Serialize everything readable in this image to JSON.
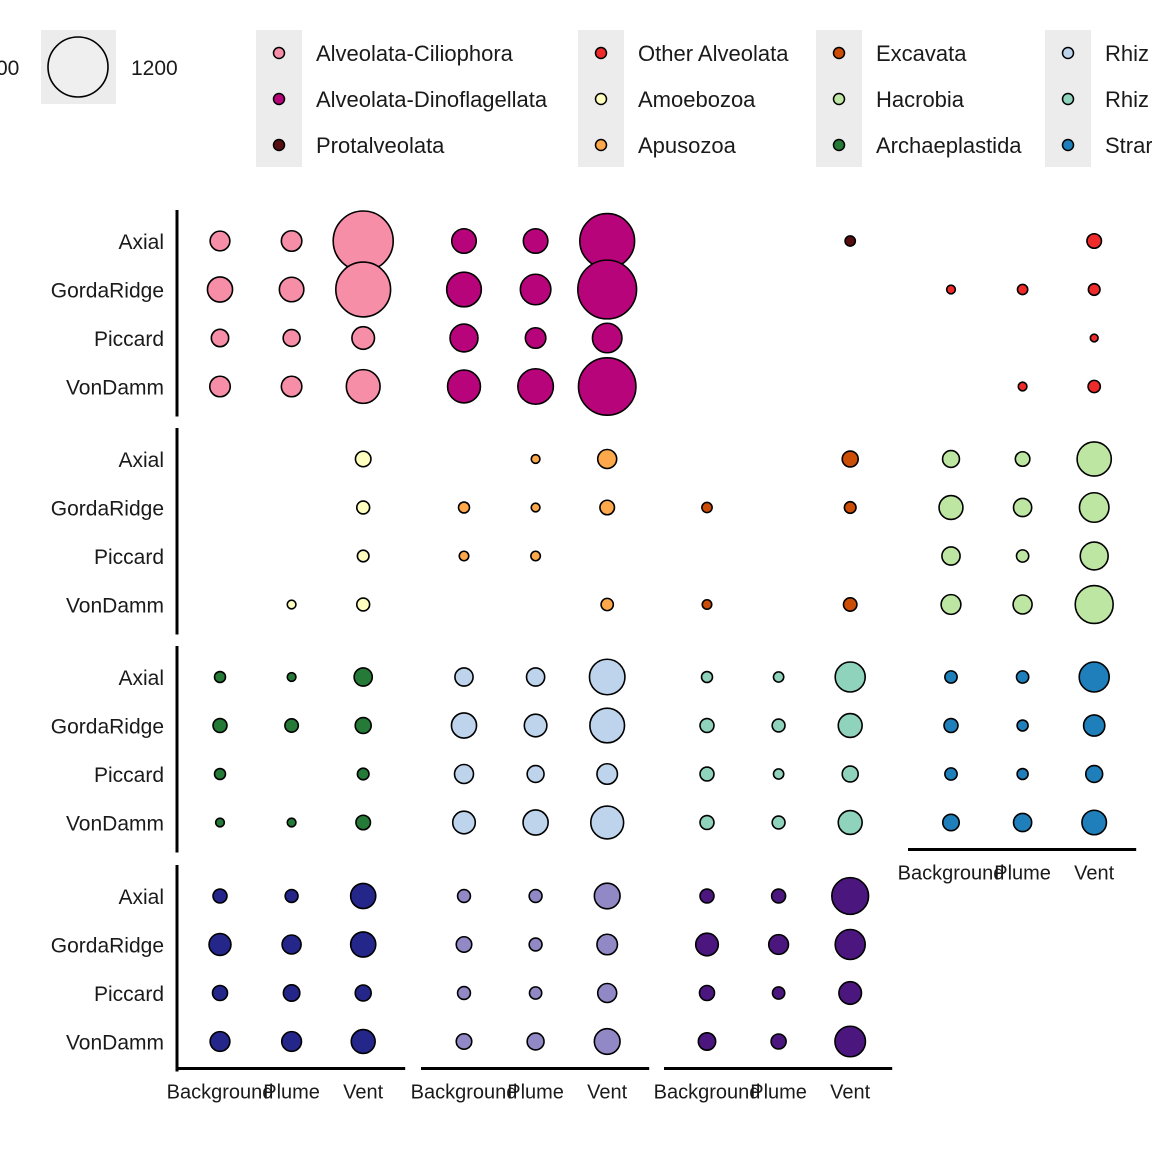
{
  "chart_data": {
    "type": "scatter",
    "x_categories": [
      "Background",
      "Plume",
      "Vent"
    ],
    "y_categories": [
      "Axial",
      "GordaRidge",
      "Piccard",
      "VonDamm"
    ],
    "size_legend": {
      "entries": [
        {
          "label": "1200",
          "value": 1200
        }
      ],
      "partial_label": "00"
    },
    "colors": {
      "Alveolata-Ciliophora": "#f78ea8",
      "Alveolata-Dinoflagellata": "#b8047a",
      "Protalveolata": "#570e10",
      "Other Alveolata": "#ef2a2a",
      "Amoebozoa": "#ffffbf",
      "Apusozoa": "#fda84b",
      "Excavata": "#cc4d06",
      "Hacrobia": "#bee6a3",
      "Archaeplastida": "#247a36",
      "Rhizaria-Cercozoa": "#bdd4ec",
      "Rhizaria-Radiolaria": "#8fd3bc",
      "Stramenopiles": "#1f7fba",
      "Opisthokonta-Fungi": "#25268a",
      "Opisthokonta-Metazoa": "#9188c6",
      "Opisthokonta-Other": "#4b177f"
    },
    "legend": {
      "columns": [
        [
          "Alveolata-Ciliophora",
          "Alveolata-Dinoflagellata",
          "Protalveolata"
        ],
        [
          "Other Alveolata",
          "Amoebozoa",
          "Apusozoa"
        ],
        [
          "Excavata",
          "Hacrobia",
          "Archaeplastida"
        ],
        [
          "Rhizaria-Cercozoa",
          "Rhizaria-Radiolaria",
          "Stramenopiles"
        ]
      ],
      "visible_text": [
        [
          "Alveolata-Ciliophora",
          "Alveolata-Dinoflagellata",
          "Protalveolata"
        ],
        [
          "Other Alveolata",
          "Amoebozoa",
          "Apusozoa"
        ],
        [
          "Excavata",
          "Hacrobia",
          "Archaeplastida"
        ],
        [
          "Rhiz",
          "Rhiz",
          "Strar"
        ]
      ]
    },
    "facets": [
      {
        "row": 0,
        "col": 0,
        "group": "Alveolata-Ciliophora",
        "values": [
          [
            130,
            140,
            1200
          ],
          [
            210,
            200,
            1000
          ],
          [
            100,
            95,
            170
          ],
          [
            140,
            140,
            380
          ]
        ]
      },
      {
        "row": 0,
        "col": 1,
        "group": "Alveolata-Dinoflagellata",
        "values": [
          [
            200,
            200,
            1000
          ],
          [
            400,
            310,
            1150
          ],
          [
            260,
            140,
            290
          ],
          [
            360,
            420,
            1100
          ]
        ]
      },
      {
        "row": 0,
        "col": 2,
        "group": "Protalveolata",
        "values": [
          [
            null,
            null,
            35
          ],
          [
            null,
            null,
            null
          ],
          [
            null,
            null,
            null
          ],
          [
            null,
            null,
            null
          ]
        ]
      },
      {
        "row": 0,
        "col": 3,
        "group": "Other Alveolata",
        "values": [
          [
            null,
            null,
            70
          ],
          [
            25,
            35,
            45
          ],
          [
            null,
            null,
            20
          ],
          [
            null,
            25,
            50
          ]
        ]
      },
      {
        "row": 1,
        "col": 0,
        "group": "Amoebozoa",
        "values": [
          [
            null,
            null,
            80
          ],
          [
            null,
            null,
            55
          ],
          [
            null,
            null,
            45
          ],
          [
            null,
            25,
            55
          ]
        ]
      },
      {
        "row": 1,
        "col": 1,
        "group": "Apusozoa",
        "values": [
          [
            null,
            25,
            120
          ],
          [
            40,
            25,
            70
          ],
          [
            30,
            30,
            null
          ],
          [
            null,
            null,
            50
          ]
        ]
      },
      {
        "row": 1,
        "col": 2,
        "group": "Excavata",
        "values": [
          [
            null,
            null,
            85
          ],
          [
            35,
            null,
            45
          ],
          [
            null,
            null,
            null
          ],
          [
            30,
            null,
            60
          ]
        ]
      },
      {
        "row": 1,
        "col": 3,
        "group": "Hacrobia",
        "values": [
          [
            95,
            70,
            390
          ],
          [
            190,
            110,
            290
          ],
          [
            110,
            50,
            260
          ],
          [
            130,
            120,
            480
          ]
        ]
      },
      {
        "row": 2,
        "col": 0,
        "group": "Archaeplastida",
        "values": [
          [
            40,
            25,
            110
          ],
          [
            65,
            60,
            85
          ],
          [
            40,
            null,
            45
          ],
          [
            25,
            25,
            70
          ]
        ]
      },
      {
        "row": 2,
        "col": 1,
        "group": "Rhizaria-Cercozoa",
        "values": [
          [
            110,
            110,
            420
          ],
          [
            210,
            170,
            400
          ],
          [
            120,
            95,
            140
          ],
          [
            170,
            210,
            360
          ]
        ]
      },
      {
        "row": 2,
        "col": 2,
        "group": "Rhizaria-Radiolaria",
        "values": [
          [
            40,
            35,
            300
          ],
          [
            65,
            55,
            190
          ],
          [
            65,
            35,
            85
          ],
          [
            65,
            55,
            190
          ]
        ]
      },
      {
        "row": 2,
        "col": 3,
        "group": "Stramenopiles",
        "values": [
          [
            50,
            50,
            300
          ],
          [
            65,
            40,
            150
          ],
          [
            50,
            40,
            95
          ],
          [
            90,
            110,
            200
          ]
        ]
      },
      {
        "row": 3,
        "col": 0,
        "group": "Opisthokonta-Fungi",
        "values": [
          [
            65,
            55,
            210
          ],
          [
            160,
            120,
            210
          ],
          [
            75,
            90,
            85
          ],
          [
            130,
            130,
            190
          ]
        ]
      },
      {
        "row": 3,
        "col": 1,
        "group": "Opisthokonta-Metazoa",
        "values": [
          [
            55,
            55,
            220
          ],
          [
            80,
            55,
            140
          ],
          [
            55,
            50,
            120
          ],
          [
            80,
            95,
            220
          ]
        ]
      },
      {
        "row": 3,
        "col": 2,
        "group": "Opisthokonta-Other",
        "values": [
          [
            65,
            65,
            450
          ],
          [
            170,
            130,
            300
          ],
          [
            75,
            50,
            170
          ],
          [
            100,
            75,
            310
          ]
        ]
      }
    ],
    "panels_with_x_axis": [
      [
        3,
        0
      ],
      [
        3,
        1
      ],
      [
        3,
        2
      ],
      [
        2,
        3
      ]
    ],
    "size_scale": {
      "max_value": 1200,
      "max_diameter": 60
    }
  }
}
